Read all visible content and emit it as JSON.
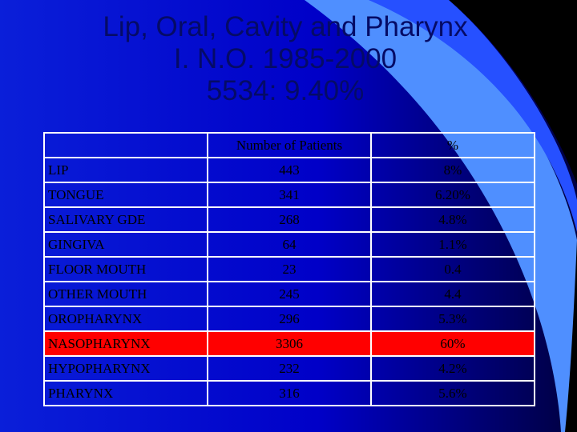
{
  "title": {
    "line1": "Lip, Oral, Cavity and Pharynx",
    "line2": "I. N.O. 1985-2000",
    "line3": "5534: 9.40%"
  },
  "table": {
    "headers": [
      "",
      "Number of Patients",
      "%"
    ],
    "rows": [
      {
        "site": "LIP",
        "patients": "443",
        "pct": "8%"
      },
      {
        "site": "TONGUE",
        "patients": "341",
        "pct": "6.20%"
      },
      {
        "site": "SALIVARY GDE",
        "patients": "268",
        "pct": "4.8%"
      },
      {
        "site": "GINGIVA",
        "patients": "64",
        "pct": "1.1%"
      },
      {
        "site": "FLOOR MOUTH",
        "patients": "23",
        "pct": "0.4"
      },
      {
        "site": "OTHER MOUTH",
        "patients": "245",
        "pct": "4.4"
      },
      {
        "site": "OROPHARYNX",
        "patients": "296",
        "pct": "5.3%"
      },
      {
        "site": "NASOPHARYNX",
        "patients": "3306",
        "pct": "60%"
      },
      {
        "site": "HYPOPHARYNX",
        "patients": "232",
        "pct": "4.2%"
      },
      {
        "site": "PHARYNX",
        "patients": "316",
        "pct": "5.6%"
      }
    ],
    "highlight_color": "#ff0000"
  },
  "colors": {
    "background": "#0000cc",
    "title_text": "#050b66",
    "swoosh_light": "#4f8fff",
    "corner_dark": "#000000"
  }
}
